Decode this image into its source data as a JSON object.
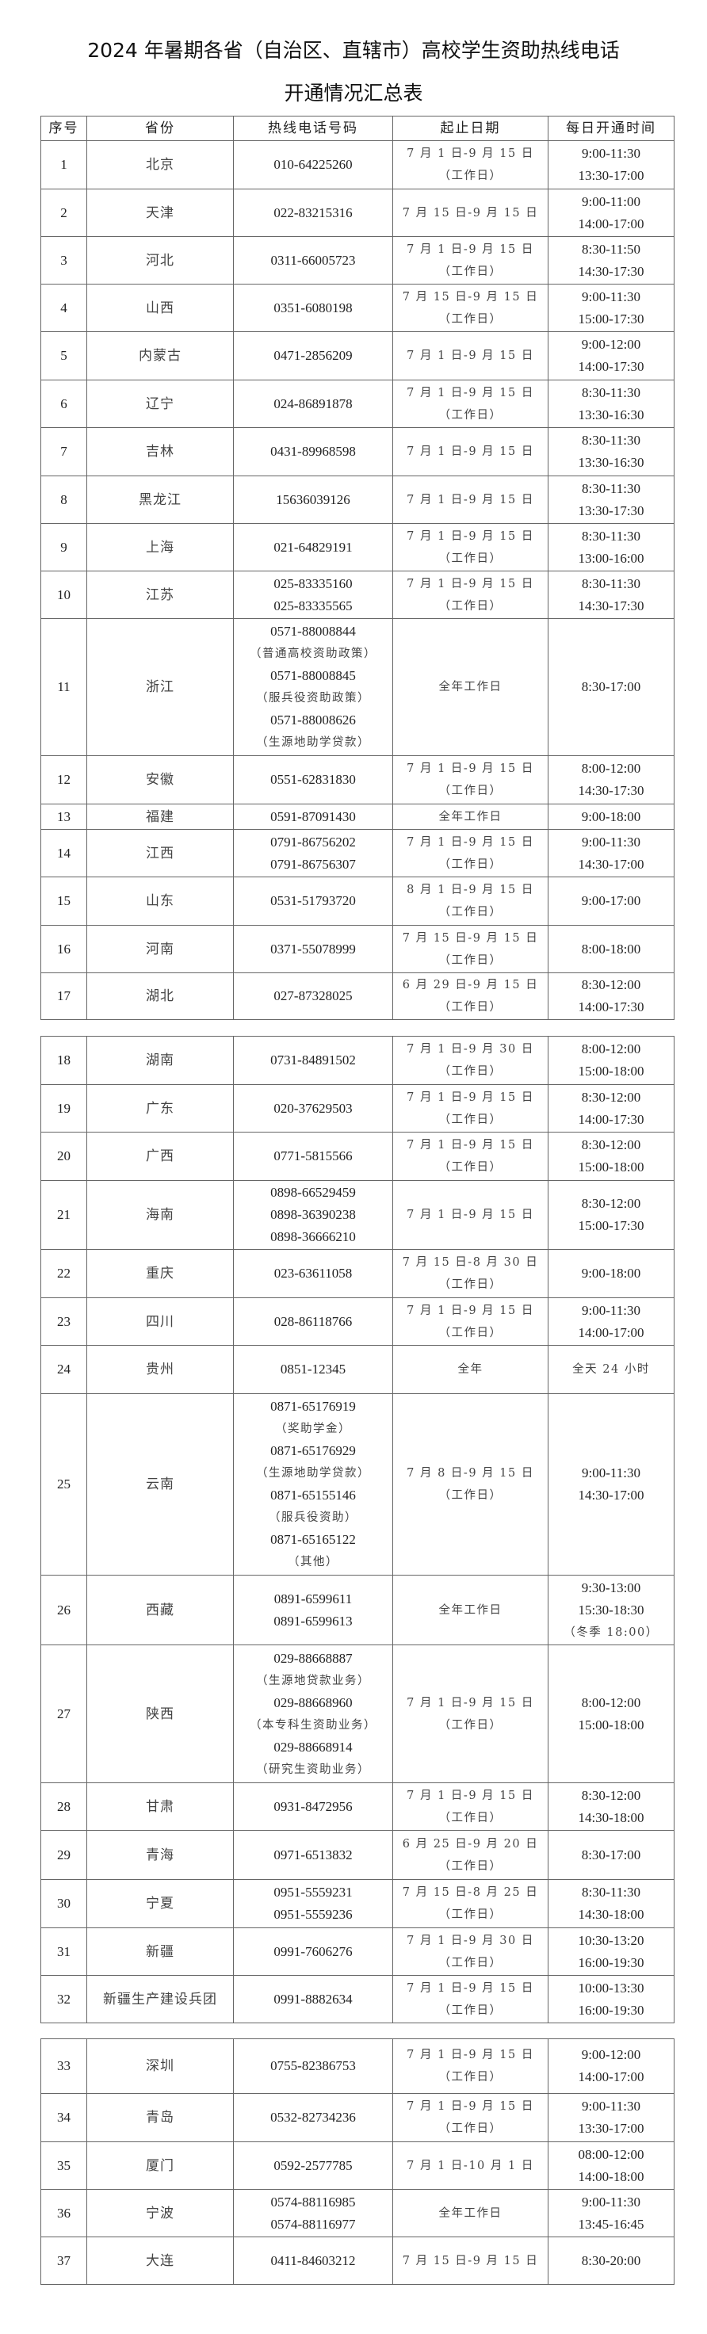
{
  "title": {
    "line1": "2024 年暑期各省（自治区、直辖市）高校学生资助热线电话",
    "line2": "开通情况汇总表"
  },
  "headers": [
    "序号",
    "省份",
    "热线电话号码",
    "起止日期",
    "每日开通时间"
  ],
  "tables": [
    {
      "has_header": true,
      "rows": [
        {
          "no": "1",
          "province": "北京",
          "phones": [
            "010-64225260"
          ],
          "dates": [
            "7 月 1 日-9 月 15 日",
            "（工作日）"
          ],
          "hours": [
            "9:00-11:30",
            "13:30-17:00"
          ]
        },
        {
          "no": "2",
          "province": "天津",
          "phones": [
            "022-83215316"
          ],
          "dates": [
            "7 月 15 日-9 月 15 日"
          ],
          "hours": [
            "9:00-11:00",
            "14:00-17:00"
          ]
        },
        {
          "no": "3",
          "province": "河北",
          "phones": [
            "0311-66005723"
          ],
          "dates": [
            "7 月 1 日-9 月 15 日",
            "（工作日）"
          ],
          "hours": [
            "8:30-11:50",
            "14:30-17:30"
          ]
        },
        {
          "no": "4",
          "province": "山西",
          "phones": [
            "0351-6080198"
          ],
          "dates": [
            "7 月 15 日-9 月 15 日",
            "（工作日）"
          ],
          "hours": [
            "9:00-11:30",
            "15:00-17:30"
          ]
        },
        {
          "no": "5",
          "province": "内蒙古",
          "phones": [
            "0471-2856209"
          ],
          "dates": [
            "7 月 1 日-9 月 15 日"
          ],
          "hours": [
            "9:00-12:00",
            "14:00-17:30"
          ]
        },
        {
          "no": "6",
          "province": "辽宁",
          "phones": [
            "024-86891878"
          ],
          "dates": [
            "7 月 1 日-9 月 15 日",
            "（工作日）"
          ],
          "hours": [
            "8:30-11:30",
            "13:30-16:30"
          ]
        },
        {
          "no": "7",
          "province": "吉林",
          "phones": [
            "0431-89968598"
          ],
          "dates": [
            "7 月 1 日-9 月 15 日"
          ],
          "hours": [
            "8:30-11:30",
            "13:30-16:30"
          ]
        },
        {
          "no": "8",
          "province": "黑龙江",
          "phones": [
            "15636039126"
          ],
          "dates": [
            "7 月 1 日-9 月 15 日"
          ],
          "hours": [
            "8:30-11:30",
            "13:30-17:30"
          ]
        },
        {
          "no": "9",
          "province": "上海",
          "phones": [
            "021-64829191"
          ],
          "dates": [
            "7 月 1 日-9 月 15 日",
            "（工作日）"
          ],
          "hours": [
            "8:30-11:30",
            "13:00-16:00"
          ]
        },
        {
          "no": "10",
          "province": "江苏",
          "phones": [
            "025-83335160",
            "025-83335565"
          ],
          "dates": [
            "7 月 1 日-9 月 15 日",
            "（工作日）"
          ],
          "hours": [
            "8:30-11:30",
            "14:30-17:30"
          ]
        },
        {
          "no": "11",
          "province": "浙江",
          "phones": [
            "0571-88008844",
            "（普通高校资助政策）",
            "0571-88008845",
            "（服兵役资助政策）",
            "0571-88008626",
            "（生源地助学贷款）"
          ],
          "dates": [
            "全年工作日"
          ],
          "hours": [
            "8:30-17:00"
          ]
        },
        {
          "no": "12",
          "province": "安徽",
          "phones": [
            "0551-62831830"
          ],
          "dates": [
            "7 月 1 日-9 月 15 日",
            "（工作日）"
          ],
          "hours": [
            "8:00-12:00",
            "14:30-17:30"
          ]
        },
        {
          "no": "13",
          "province": "福建",
          "phones": [
            "0591-87091430"
          ],
          "dates": [
            "全年工作日"
          ],
          "hours": [
            "9:00-18:00"
          ]
        },
        {
          "no": "14",
          "province": "江西",
          "phones": [
            "0791-86756202",
            "0791-86756307"
          ],
          "dates": [
            "7 月 1 日-9 月 15 日",
            "（工作日）"
          ],
          "hours": [
            "9:00-11:30",
            "14:30-17:00"
          ]
        },
        {
          "no": "15",
          "province": "山东",
          "phones": [
            "0531-51793720"
          ],
          "dates": [
            "8 月 1 日-9 月 15 日",
            "（工作日）"
          ],
          "hours": [
            "9:00-17:00"
          ]
        },
        {
          "no": "16",
          "province": "河南",
          "phones": [
            "0371-55078999"
          ],
          "dates": [
            "7 月 15 日-9 月 15 日",
            "（工作日）"
          ],
          "hours": [
            "8:00-18:00"
          ]
        },
        {
          "no": "17",
          "province": "湖北",
          "phones": [
            "027-87328025"
          ],
          "dates": [
            "6 月 29 日-9 月 15 日",
            "（工作日）"
          ],
          "hours": [
            "8:30-12:00",
            "14:00-17:30"
          ]
        }
      ]
    },
    {
      "has_header": false,
      "rows": [
        {
          "no": "18",
          "province": "湖南",
          "phones": [
            "0731-84891502"
          ],
          "dates": [
            "7 月 1 日-9 月 30 日",
            "（工作日）"
          ],
          "hours": [
            "8:00-12:00",
            "15:00-18:00"
          ]
        },
        {
          "no": "19",
          "province": "广东",
          "phones": [
            "020-37629503"
          ],
          "dates": [
            "7 月 1 日-9 月 15 日",
            "（工作日）"
          ],
          "hours": [
            "8:30-12:00",
            "14:00-17:30"
          ]
        },
        {
          "no": "20",
          "province": "广西",
          "phones": [
            "0771-5815566"
          ],
          "dates": [
            "7 月 1 日-9 月 15 日",
            "（工作日）"
          ],
          "hours": [
            "8:30-12:00",
            "15:00-18:00"
          ]
        },
        {
          "no": "21",
          "province": "海南",
          "phones": [
            "0898-66529459",
            "0898-36390238",
            "0898-36666210"
          ],
          "dates": [
            "7 月 1 日-9 月 15 日"
          ],
          "hours": [
            "8:30-12:00",
            "15:00-17:30"
          ]
        },
        {
          "no": "22",
          "province": "重庆",
          "phones": [
            "023-63611058"
          ],
          "dates": [
            "7 月 15 日-8 月 30 日",
            "（工作日）"
          ],
          "hours": [
            "9:00-18:00"
          ]
        },
        {
          "no": "23",
          "province": "四川",
          "phones": [
            "028-86118766"
          ],
          "dates": [
            "7 月 1 日-9 月 15 日",
            "（工作日）"
          ],
          "hours": [
            "9:00-11:30",
            "14:00-17:00"
          ]
        },
        {
          "no": "24",
          "province": "贵州",
          "phones": [
            "0851-12345"
          ],
          "dates": [
            "全年"
          ],
          "hours": [
            "全天 24 小时"
          ]
        },
        {
          "no": "25",
          "province": "云南",
          "phones": [
            "0871-65176919",
            "（奖助学金）",
            "0871-65176929",
            "（生源地助学贷款）",
            "0871-65155146",
            "（服兵役资助）",
            "0871-65165122",
            "（其他）"
          ],
          "dates": [
            "7 月 8 日-9 月 15 日",
            "（工作日）"
          ],
          "hours": [
            "9:00-11:30",
            "14:30-17:00"
          ]
        },
        {
          "no": "26",
          "province": "西藏",
          "phones": [
            "0891-6599611",
            "0891-6599613"
          ],
          "dates": [
            "全年工作日"
          ],
          "hours": [
            "9:30-13:00",
            "15:30-18:30",
            "（冬季 18:00）"
          ]
        },
        {
          "no": "27",
          "province": "陕西",
          "phones": [
            "029-88668887",
            "（生源地贷款业务）",
            "029-88668960",
            "（本专科生资助业务）",
            "029-88668914",
            "（研究生资助业务）"
          ],
          "dates": [
            "7 月 1 日-9 月 15 日",
            "（工作日）"
          ],
          "hours": [
            "8:00-12:00",
            "15:00-18:00"
          ]
        },
        {
          "no": "28",
          "province": "甘肃",
          "phones": [
            "0931-8472956"
          ],
          "dates": [
            "7 月 1 日-9 月 15 日",
            "（工作日）"
          ],
          "hours": [
            "8:30-12:00",
            "14:30-18:00"
          ]
        },
        {
          "no": "29",
          "province": "青海",
          "phones": [
            "0971-6513832"
          ],
          "dates": [
            "6 月 25 日-9 月 20 日",
            "（工作日）"
          ],
          "hours": [
            "8:30-17:00"
          ]
        },
        {
          "no": "30",
          "province": "宁夏",
          "phones": [
            "0951-5559231",
            "0951-5559236"
          ],
          "dates": [
            "7 月 15 日-8 月 25 日",
            "（工作日）"
          ],
          "hours": [
            "8:30-11:30",
            "14:30-18:00"
          ]
        },
        {
          "no": "31",
          "province": "新疆",
          "phones": [
            "0991-7606276"
          ],
          "dates": [
            "7 月 1 日-9 月 30 日",
            "（工作日）"
          ],
          "hours": [
            "10:30-13:20",
            "16:00-19:30"
          ]
        },
        {
          "no": "32",
          "province": "新疆生产建设兵团",
          "phones": [
            "0991-8882634"
          ],
          "dates": [
            "7 月 1 日-9 月 15 日",
            "（工作日）"
          ],
          "hours": [
            "10:00-13:30",
            "16:00-19:30"
          ]
        }
      ]
    },
    {
      "has_header": false,
      "rows": [
        {
          "no": "33",
          "province": "深圳",
          "phones": [
            "0755-82386753"
          ],
          "dates": [
            "7 月 1 日-9 月 15 日",
            "（工作日）"
          ],
          "hours": [
            "9:00-12:00",
            "14:00-17:00"
          ]
        },
        {
          "no": "34",
          "province": "青岛",
          "phones": [
            "0532-82734236"
          ],
          "dates": [
            "7 月 1 日-9 月 15 日",
            "（工作日）"
          ],
          "hours": [
            "9:00-11:30",
            "13:30-17:00"
          ]
        },
        {
          "no": "35",
          "province": "厦门",
          "phones": [
            "0592-2577785"
          ],
          "dates": [
            "7 月 1 日-10 月 1 日"
          ],
          "hours": [
            "08:00-12:00",
            "14:00-18:00"
          ]
        },
        {
          "no": "36",
          "province": "宁波",
          "phones": [
            "0574-88116985",
            "0574-88116977"
          ],
          "dates": [
            "全年工作日"
          ],
          "hours": [
            "9:00-11:30",
            "13:45-16:45"
          ]
        },
        {
          "no": "37",
          "province": "大连",
          "phones": [
            "0411-84603212"
          ],
          "dates": [
            "7 月 15 日-9 月 15 日"
          ],
          "hours": [
            "8:30-20:00"
          ]
        }
      ]
    }
  ]
}
